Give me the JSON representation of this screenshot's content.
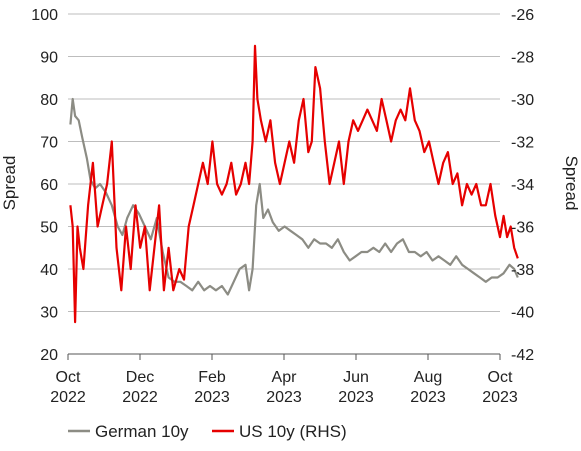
{
  "chart_data": {
    "type": "line",
    "title": "",
    "ylabel_left": "Spread",
    "ylabel_right": "Spread",
    "ylim_left": [
      20,
      100
    ],
    "ylim_right": [
      -42,
      -26
    ],
    "yticks_left": [
      "100",
      "90",
      "80",
      "70",
      "60",
      "50",
      "40",
      "30",
      "20"
    ],
    "yticks_right": [
      "-26",
      "-28",
      "-30",
      "-32",
      "-34",
      "-36",
      "-38",
      "-40",
      "-42"
    ],
    "xticks": [
      {
        "month": "Oct",
        "year": "2022"
      },
      {
        "month": "Dec",
        "year": "2022"
      },
      {
        "month": "Feb",
        "year": "2023"
      },
      {
        "month": "Apr",
        "year": "2023"
      },
      {
        "month": "Jun",
        "year": "2023"
      },
      {
        "month": "Aug",
        "year": "2023"
      },
      {
        "month": "Oct",
        "year": "2023"
      }
    ],
    "grid": true,
    "legend": "bottom",
    "series": [
      {
        "name": "German 10y",
        "axis": "left",
        "color": "#8c8c84",
        "points": [
          [
            "2022-10-03",
            74
          ],
          [
            "2022-10-05",
            80
          ],
          [
            "2022-10-07",
            76
          ],
          [
            "2022-10-10",
            75
          ],
          [
            "2022-10-13",
            71
          ],
          [
            "2022-10-17",
            66
          ],
          [
            "2022-10-20",
            61
          ],
          [
            "2022-10-24",
            59
          ],
          [
            "2022-10-28",
            60
          ],
          [
            "2022-11-02",
            58
          ],
          [
            "2022-11-07",
            55
          ],
          [
            "2022-11-12",
            50
          ],
          [
            "2022-11-16",
            48
          ],
          [
            "2022-11-20",
            52
          ],
          [
            "2022-11-25",
            55
          ],
          [
            "2022-11-30",
            53
          ],
          [
            "2022-12-05",
            50
          ],
          [
            "2022-12-10",
            47
          ],
          [
            "2022-12-15",
            52
          ],
          [
            "2022-12-20",
            44
          ],
          [
            "2022-12-25",
            38
          ],
          [
            "2022-12-30",
            37
          ],
          [
            "2023-01-04",
            37
          ],
          [
            "2023-01-09",
            36
          ],
          [
            "2023-01-14",
            35
          ],
          [
            "2023-01-19",
            37
          ],
          [
            "2023-01-24",
            35
          ],
          [
            "2023-01-29",
            36
          ],
          [
            "2023-02-03",
            35
          ],
          [
            "2023-02-08",
            36
          ],
          [
            "2023-02-13",
            34
          ],
          [
            "2023-02-18",
            37
          ],
          [
            "2023-02-23",
            40
          ],
          [
            "2023-02-28",
            41
          ],
          [
            "2023-03-03",
            35
          ],
          [
            "2023-03-06",
            40
          ],
          [
            "2023-03-09",
            55
          ],
          [
            "2023-03-12",
            60
          ],
          [
            "2023-03-15",
            52
          ],
          [
            "2023-03-19",
            54
          ],
          [
            "2023-03-23",
            51
          ],
          [
            "2023-03-28",
            49
          ],
          [
            "2023-04-02",
            50
          ],
          [
            "2023-04-07",
            49
          ],
          [
            "2023-04-12",
            48
          ],
          [
            "2023-04-17",
            47
          ],
          [
            "2023-04-22",
            45
          ],
          [
            "2023-04-27",
            47
          ],
          [
            "2023-05-02",
            46
          ],
          [
            "2023-05-07",
            46
          ],
          [
            "2023-05-12",
            45
          ],
          [
            "2023-05-17",
            47
          ],
          [
            "2023-05-22",
            44
          ],
          [
            "2023-05-27",
            42
          ],
          [
            "2023-06-01",
            43
          ],
          [
            "2023-06-06",
            44
          ],
          [
            "2023-06-11",
            44
          ],
          [
            "2023-06-16",
            45
          ],
          [
            "2023-06-21",
            44
          ],
          [
            "2023-06-26",
            46
          ],
          [
            "2023-07-01",
            44
          ],
          [
            "2023-07-06",
            46
          ],
          [
            "2023-07-11",
            47
          ],
          [
            "2023-07-16",
            44
          ],
          [
            "2023-07-21",
            44
          ],
          [
            "2023-07-26",
            43
          ],
          [
            "2023-07-31",
            44
          ],
          [
            "2023-08-05",
            42
          ],
          [
            "2023-08-10",
            43
          ],
          [
            "2023-08-15",
            42
          ],
          [
            "2023-08-20",
            41
          ],
          [
            "2023-08-25",
            43
          ],
          [
            "2023-08-30",
            41
          ],
          [
            "2023-09-04",
            40
          ],
          [
            "2023-09-09",
            39
          ],
          [
            "2023-09-14",
            38
          ],
          [
            "2023-09-19",
            37
          ],
          [
            "2023-09-24",
            38
          ],
          [
            "2023-09-29",
            38
          ],
          [
            "2023-10-04",
            39
          ],
          [
            "2023-10-09",
            41
          ],
          [
            "2023-10-13",
            40
          ],
          [
            "2023-10-16",
            38
          ]
        ]
      },
      {
        "name": "US 10y (RHS)",
        "axis": "right",
        "color": "#e60000",
        "points": [
          [
            "2022-10-03",
            -35
          ],
          [
            "2022-10-05",
            -36
          ],
          [
            "2022-10-07",
            -40.5
          ],
          [
            "2022-10-09",
            -36
          ],
          [
            "2022-10-11",
            -37
          ],
          [
            "2022-10-14",
            -38
          ],
          [
            "2022-10-18",
            -35
          ],
          [
            "2022-10-22",
            -33
          ],
          [
            "2022-10-26",
            -36
          ],
          [
            "2022-10-30",
            -35
          ],
          [
            "2022-11-03",
            -34
          ],
          [
            "2022-11-07",
            -32
          ],
          [
            "2022-11-11",
            -37
          ],
          [
            "2022-11-15",
            -39
          ],
          [
            "2022-11-19",
            -36
          ],
          [
            "2022-11-23",
            -38
          ],
          [
            "2022-11-27",
            -35
          ],
          [
            "2022-12-01",
            -37
          ],
          [
            "2022-12-05",
            -36
          ],
          [
            "2022-12-09",
            -39
          ],
          [
            "2022-12-13",
            -37
          ],
          [
            "2022-12-17",
            -35
          ],
          [
            "2022-12-21",
            -39
          ],
          [
            "2022-12-25",
            -37
          ],
          [
            "2022-12-29",
            -39
          ],
          [
            "2023-01-03",
            -38
          ],
          [
            "2023-01-07",
            -38.5
          ],
          [
            "2023-01-11",
            -36
          ],
          [
            "2023-01-15",
            -35
          ],
          [
            "2023-01-19",
            -34
          ],
          [
            "2023-01-23",
            -33
          ],
          [
            "2023-01-27",
            -34
          ],
          [
            "2023-01-31",
            -32
          ],
          [
            "2023-02-04",
            -34
          ],
          [
            "2023-02-08",
            -34.5
          ],
          [
            "2023-02-12",
            -34
          ],
          [
            "2023-02-16",
            -33
          ],
          [
            "2023-02-20",
            -34.5
          ],
          [
            "2023-02-24",
            -34
          ],
          [
            "2023-02-28",
            -33
          ],
          [
            "2023-03-03",
            -34
          ],
          [
            "2023-03-06",
            -32
          ],
          [
            "2023-03-08",
            -27.5
          ],
          [
            "2023-03-10",
            -30
          ],
          [
            "2023-03-13",
            -31
          ],
          [
            "2023-03-17",
            -32
          ],
          [
            "2023-03-21",
            -31
          ],
          [
            "2023-03-25",
            -33
          ],
          [
            "2023-03-29",
            -34
          ],
          [
            "2023-04-02",
            -33
          ],
          [
            "2023-04-06",
            -32
          ],
          [
            "2023-04-10",
            -33
          ],
          [
            "2023-04-14",
            -31
          ],
          [
            "2023-04-18",
            -30
          ],
          [
            "2023-04-22",
            -32.5
          ],
          [
            "2023-04-25",
            -32
          ],
          [
            "2023-04-28",
            -28.5
          ],
          [
            "2023-05-02",
            -29.5
          ],
          [
            "2023-05-06",
            -32
          ],
          [
            "2023-05-10",
            -34
          ],
          [
            "2023-05-14",
            -33
          ],
          [
            "2023-05-18",
            -32
          ],
          [
            "2023-05-22",
            -34
          ],
          [
            "2023-05-26",
            -32
          ],
          [
            "2023-05-30",
            -31
          ],
          [
            "2023-06-03",
            -31.5
          ],
          [
            "2023-06-07",
            -31
          ],
          [
            "2023-06-11",
            -30.5
          ],
          [
            "2023-06-15",
            -31
          ],
          [
            "2023-06-19",
            -31.5
          ],
          [
            "2023-06-23",
            -30
          ],
          [
            "2023-06-27",
            -31
          ],
          [
            "2023-07-01",
            -32
          ],
          [
            "2023-07-05",
            -31
          ],
          [
            "2023-07-09",
            -30.5
          ],
          [
            "2023-07-13",
            -31
          ],
          [
            "2023-07-17",
            -29.5
          ],
          [
            "2023-07-21",
            -31
          ],
          [
            "2023-07-25",
            -31.5
          ],
          [
            "2023-07-29",
            -32.5
          ],
          [
            "2023-08-02",
            -32
          ],
          [
            "2023-08-06",
            -33
          ],
          [
            "2023-08-10",
            -34
          ],
          [
            "2023-08-14",
            -33
          ],
          [
            "2023-08-18",
            -32.5
          ],
          [
            "2023-08-22",
            -34
          ],
          [
            "2023-08-26",
            -33.5
          ],
          [
            "2023-08-30",
            -35
          ],
          [
            "2023-09-03",
            -34
          ],
          [
            "2023-09-07",
            -34.5
          ],
          [
            "2023-09-11",
            -34
          ],
          [
            "2023-09-15",
            -35
          ],
          [
            "2023-09-19",
            -35
          ],
          [
            "2023-09-23",
            -34
          ],
          [
            "2023-09-27",
            -35.5
          ],
          [
            "2023-10-01",
            -36.5
          ],
          [
            "2023-10-04",
            -35.5
          ],
          [
            "2023-10-07",
            -36.5
          ],
          [
            "2023-10-10",
            -36
          ],
          [
            "2023-10-13",
            -37
          ],
          [
            "2023-10-16",
            -37.5
          ]
        ]
      }
    ]
  }
}
